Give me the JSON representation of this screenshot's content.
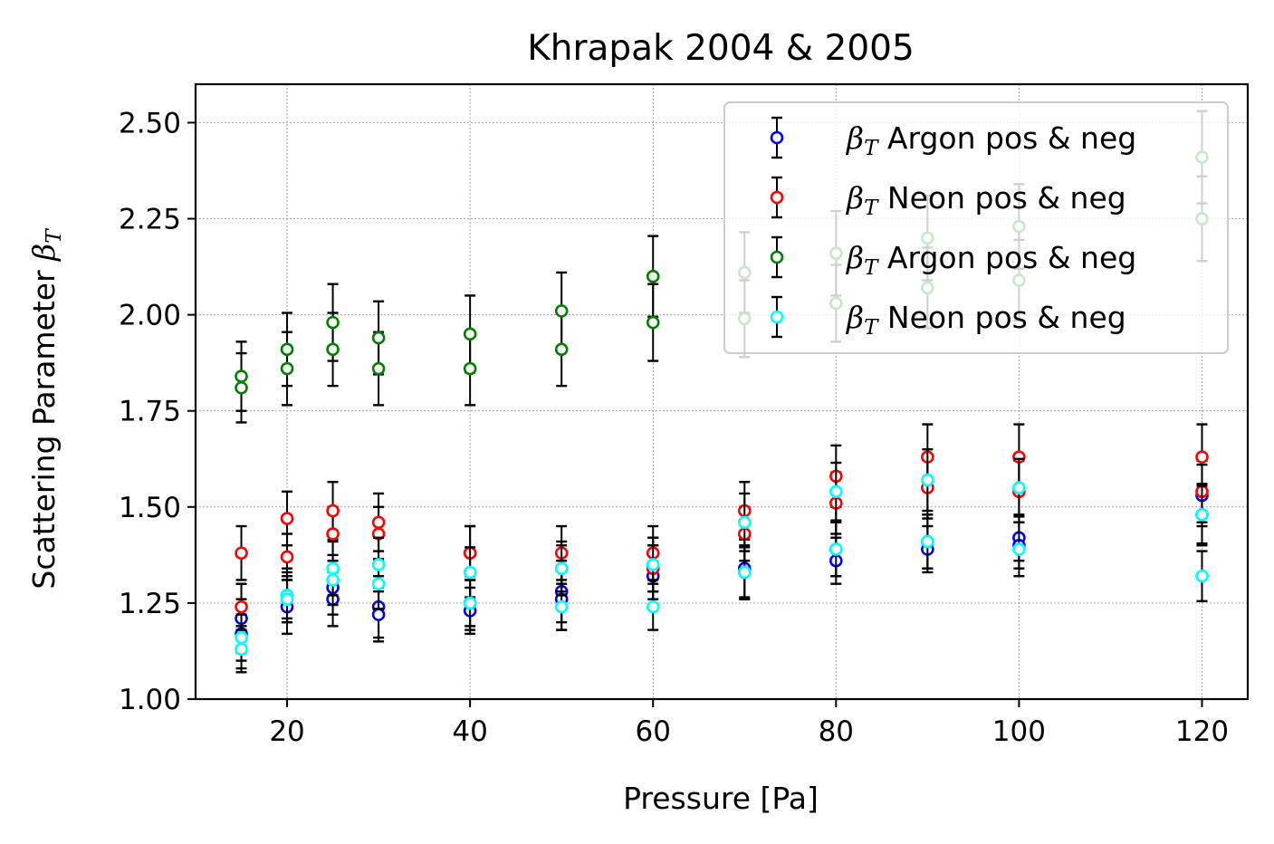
{
  "chart_data": {
    "type": "scatter",
    "title": "Khrapak 2004 & 2005",
    "xlabel": "Pressure [Pa]",
    "ylabel": "Scattering Parameter β_T",
    "xlim": [
      10,
      125
    ],
    "ylim": [
      1.0,
      2.6
    ],
    "xticks": [
      20,
      40,
      60,
      80,
      100,
      120
    ],
    "xtick_labels": [
      "20",
      "40",
      "60",
      "80",
      "100",
      "120"
    ],
    "yticks": [
      1.0,
      1.25,
      1.5,
      1.75,
      2.0,
      2.25,
      2.5
    ],
    "ytick_labels": [
      "1.00",
      "1.25",
      "1.50",
      "1.75",
      "2.00",
      "2.25",
      "2.50"
    ],
    "grid": true,
    "legend_position": "top-right",
    "series": [
      {
        "name": "β_T Argon pos & neg",
        "legend_symbol": "β",
        "legend_sub": "T",
        "legend_rest": " Argon pos & neg",
        "color": "#0000ff",
        "points": [
          {
            "x": 15,
            "y": 1.21,
            "err": 0.09
          },
          {
            "x": 15,
            "y": 1.17,
            "err": 0.09
          },
          {
            "x": 20,
            "y": 1.24,
            "err": 0.07
          },
          {
            "x": 20,
            "y": 1.27,
            "err": 0.07
          },
          {
            "x": 25,
            "y": 1.26,
            "err": 0.07
          },
          {
            "x": 25,
            "y": 1.29,
            "err": 0.07
          },
          {
            "x": 30,
            "y": 1.24,
            "err": 0.08
          },
          {
            "x": 30,
            "y": 1.22,
            "err": 0.07
          },
          {
            "x": 40,
            "y": 1.23,
            "err": 0.06
          },
          {
            "x": 40,
            "y": 1.25,
            "err": 0.07
          },
          {
            "x": 50,
            "y": 1.28,
            "err": 0.08
          },
          {
            "x": 50,
            "y": 1.26,
            "err": 0.08
          },
          {
            "x": 60,
            "y": 1.32,
            "err": 0.08
          },
          {
            "x": 60,
            "y": 1.34,
            "err": 0.08
          },
          {
            "x": 70,
            "y": 1.34,
            "err": 0.08
          },
          {
            "x": 70,
            "y": 1.33,
            "err": 0.07
          },
          {
            "x": 80,
            "y": 1.36,
            "err": 0.06
          },
          {
            "x": 80,
            "y": 1.39,
            "err": 0.07
          },
          {
            "x": 90,
            "y": 1.39,
            "err": 0.06
          },
          {
            "x": 90,
            "y": 1.41,
            "err": 0.07
          },
          {
            "x": 100,
            "y": 1.42,
            "err": 0.06
          },
          {
            "x": 100,
            "y": 1.4,
            "err": 0.06
          },
          {
            "x": 120,
            "y": 1.53,
            "err": 0.08
          },
          {
            "x": 120,
            "y": 1.48,
            "err": 0.08
          }
        ]
      },
      {
        "name": "β_T Neon pos & neg",
        "legend_symbol": "β",
        "legend_sub": "T",
        "legend_rest": " Neon pos & neg",
        "color": "#ff0000",
        "points": [
          {
            "x": 15,
            "y": 1.38,
            "err": 0.07
          },
          {
            "x": 15,
            "y": 1.24,
            "err": 0.06
          },
          {
            "x": 20,
            "y": 1.47,
            "err": 0.07
          },
          {
            "x": 20,
            "y": 1.37,
            "err": 0.06
          },
          {
            "x": 25,
            "y": 1.49,
            "err": 0.075
          },
          {
            "x": 25,
            "y": 1.43,
            "err": 0.07
          },
          {
            "x": 30,
            "y": 1.46,
            "err": 0.075
          },
          {
            "x": 30,
            "y": 1.43,
            "err": 0.07
          },
          {
            "x": 40,
            "y": 1.38,
            "err": 0.07
          },
          {
            "x": 40,
            "y": 1.38,
            "err": 0.07
          },
          {
            "x": 50,
            "y": 1.38,
            "err": 0.07
          },
          {
            "x": 50,
            "y": 1.34,
            "err": 0.06
          },
          {
            "x": 60,
            "y": 1.38,
            "err": 0.07
          },
          {
            "x": 60,
            "y": 1.34,
            "err": 0.06
          },
          {
            "x": 70,
            "y": 1.49,
            "err": 0.075
          },
          {
            "x": 70,
            "y": 1.43,
            "err": 0.07
          },
          {
            "x": 80,
            "y": 1.58,
            "err": 0.08
          },
          {
            "x": 80,
            "y": 1.51,
            "err": 0.08
          },
          {
            "x": 90,
            "y": 1.63,
            "err": 0.085
          },
          {
            "x": 90,
            "y": 1.55,
            "err": 0.08
          },
          {
            "x": 100,
            "y": 1.63,
            "err": 0.085
          },
          {
            "x": 100,
            "y": 1.54,
            "err": 0.08
          },
          {
            "x": 120,
            "y": 1.63,
            "err": 0.085
          },
          {
            "x": 120,
            "y": 1.54,
            "err": 0.08
          }
        ]
      },
      {
        "name": "β_T Argon pos & neg",
        "legend_symbol": "β",
        "legend_sub": "T",
        "legend_rest": " Argon pos & neg",
        "color": "#008000",
        "points": [
          {
            "x": 15,
            "y": 1.84,
            "err": 0.09
          },
          {
            "x": 15,
            "y": 1.81,
            "err": 0.09
          },
          {
            "x": 20,
            "y": 1.91,
            "err": 0.095
          },
          {
            "x": 20,
            "y": 1.86,
            "err": 0.095
          },
          {
            "x": 25,
            "y": 1.98,
            "err": 0.1
          },
          {
            "x": 25,
            "y": 1.91,
            "err": 0.095
          },
          {
            "x": 30,
            "y": 1.94,
            "err": 0.095
          },
          {
            "x": 30,
            "y": 1.86,
            "err": 0.095
          },
          {
            "x": 40,
            "y": 1.95,
            "err": 0.1
          },
          {
            "x": 40,
            "y": 1.86,
            "err": 0.095
          },
          {
            "x": 50,
            "y": 2.01,
            "err": 0.1
          },
          {
            "x": 50,
            "y": 1.91,
            "err": 0.095
          },
          {
            "x": 60,
            "y": 2.1,
            "err": 0.105
          },
          {
            "x": 60,
            "y": 1.98,
            "err": 0.1
          }
        ]
      },
      {
        "name": "β_T Neon pos & neg",
        "legend_symbol": "β",
        "legend_sub": "T",
        "legend_rest": " Neon pos & neg",
        "color": "#00ffff",
        "points": [
          {
            "x": 15,
            "y": 1.16,
            "err": 0.06
          },
          {
            "x": 15,
            "y": 1.13,
            "err": 0.06
          },
          {
            "x": 20,
            "y": 1.27,
            "err": 0.06
          },
          {
            "x": 20,
            "y": 1.26,
            "err": 0.06
          },
          {
            "x": 25,
            "y": 1.34,
            "err": 0.07
          },
          {
            "x": 25,
            "y": 1.31,
            "err": 0.065
          },
          {
            "x": 30,
            "y": 1.35,
            "err": 0.07
          },
          {
            "x": 30,
            "y": 1.3,
            "err": 0.065
          },
          {
            "x": 40,
            "y": 1.33,
            "err": 0.065
          },
          {
            "x": 40,
            "y": 1.25,
            "err": 0.06
          },
          {
            "x": 50,
            "y": 1.34,
            "err": 0.07
          },
          {
            "x": 50,
            "y": 1.24,
            "err": 0.06
          },
          {
            "x": 60,
            "y": 1.35,
            "err": 0.07
          },
          {
            "x": 60,
            "y": 1.24,
            "err": 0.06
          },
          {
            "x": 70,
            "y": 1.46,
            "err": 0.075
          },
          {
            "x": 70,
            "y": 1.33,
            "err": 0.065
          },
          {
            "x": 80,
            "y": 1.54,
            "err": 0.075
          },
          {
            "x": 80,
            "y": 1.39,
            "err": 0.07
          },
          {
            "x": 90,
            "y": 1.57,
            "err": 0.08
          },
          {
            "x": 90,
            "y": 1.41,
            "err": 0.07
          },
          {
            "x": 100,
            "y": 1.55,
            "err": 0.075
          },
          {
            "x": 100,
            "y": 1.39,
            "err": 0.07
          },
          {
            "x": 120,
            "y": 1.48,
            "err": 0.075
          },
          {
            "x": 120,
            "y": 1.32,
            "err": 0.065
          }
        ]
      },
      {
        "name": "",
        "in_legend": false,
        "color": "#008000",
        "points": [
          {
            "x": 70,
            "y": 2.11,
            "err": 0.105
          },
          {
            "x": 70,
            "y": 1.99,
            "err": 0.1
          },
          {
            "x": 80,
            "y": 2.16,
            "err": 0.11
          },
          {
            "x": 80,
            "y": 2.03,
            "err": 0.1
          },
          {
            "x": 90,
            "y": 2.2,
            "err": 0.11
          },
          {
            "x": 90,
            "y": 2.07,
            "err": 0.105
          },
          {
            "x": 100,
            "y": 2.23,
            "err": 0.11
          },
          {
            "x": 100,
            "y": 2.09,
            "err": 0.105
          },
          {
            "x": 120,
            "y": 2.41,
            "err": 0.12
          },
          {
            "x": 120,
            "y": 2.25,
            "err": 0.11
          }
        ]
      }
    ]
  }
}
